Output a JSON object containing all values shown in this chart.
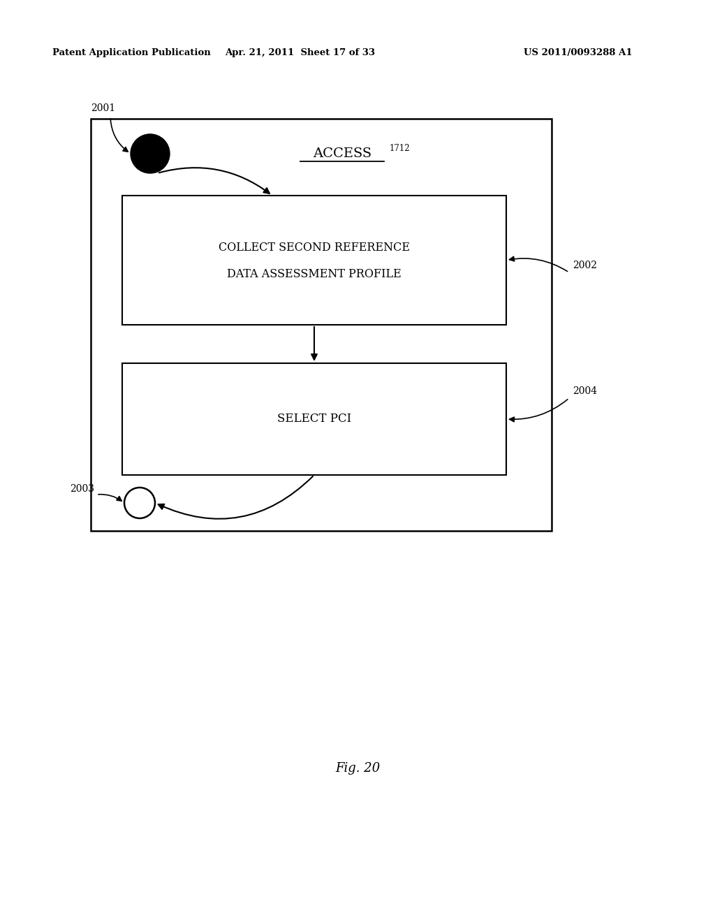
{
  "bg_color": "#ffffff",
  "header_left": "Patent Application Publication",
  "header_mid": "Apr. 21, 2011  Sheet 17 of 33",
  "header_right": "US 2011/0093288 A1",
  "footer_label": "Fig. 20",
  "access_label": "ACCESS",
  "access_super": "1712",
  "box1_label_line1": "COLLECT SECOND REFERENCE",
  "box1_label_line2": "DATA ASSESSMENT PROFILE",
  "box2_label": "SELECT PCI",
  "label_2001": "2001",
  "label_2002": "2002",
  "label_2003": "2003",
  "label_2004": "2004",
  "text_color": "#000000",
  "box_edge_color": "#000000"
}
